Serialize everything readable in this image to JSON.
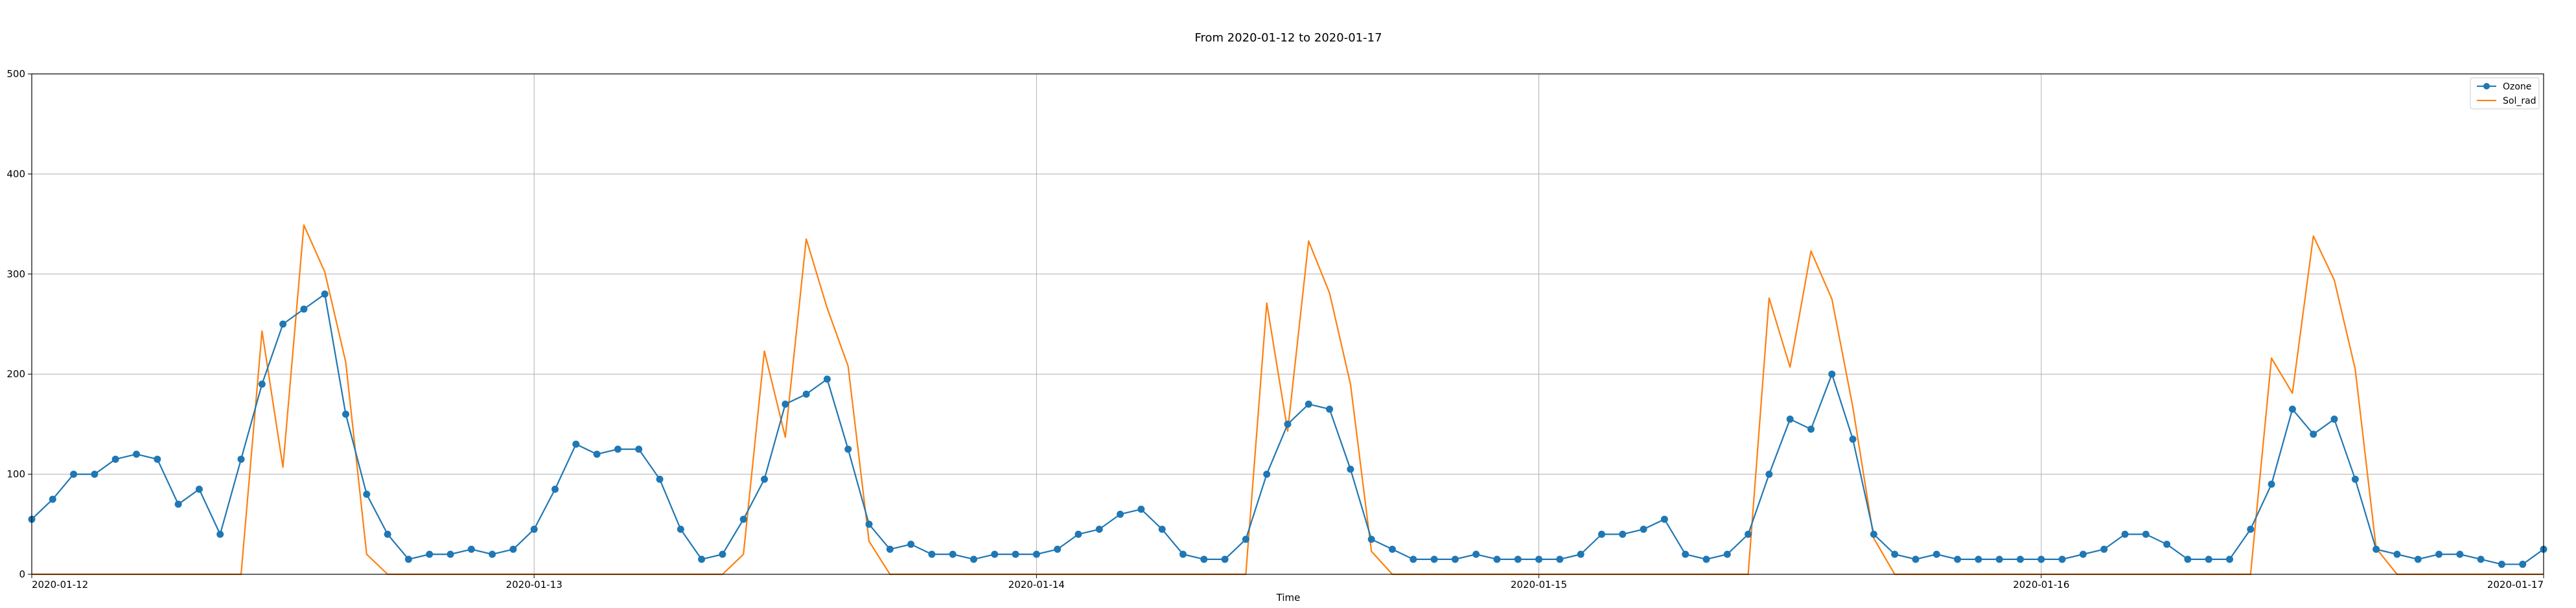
{
  "chart_data": {
    "type": "line",
    "title": "From 2020-01-12 to 2020-01-17",
    "xlabel": "Time",
    "ylabel": "",
    "xlim": [
      "2020-01-12 00:00",
      "2020-01-17 00:00"
    ],
    "ylim": [
      0,
      500
    ],
    "yticks": [
      0,
      100,
      200,
      300,
      400,
      500
    ],
    "xticks": [
      "2020-01-12",
      "2020-01-13",
      "2020-01-14",
      "2020-01-15",
      "2020-01-16",
      "2020-01-17"
    ],
    "grid": true,
    "legend": "top-right",
    "x_interval": "1 hour",
    "x_start": "2020-01-12 00:00",
    "series": [
      {
        "name": "Ozone",
        "color": "#1f77b4",
        "marker": "circle",
        "values": [
          55,
          75,
          100,
          100,
          115,
          120,
          115,
          70,
          85,
          40,
          115,
          190,
          250,
          265,
          280,
          160,
          80,
          40,
          15,
          20,
          20,
          25,
          20,
          25,
          45,
          85,
          130,
          120,
          125,
          125,
          95,
          45,
          15,
          20,
          55,
          95,
          170,
          180,
          195,
          125,
          50,
          25,
          30,
          20,
          20,
          15,
          20,
          20,
          20,
          25,
          40,
          45,
          60,
          65,
          45,
          20,
          15,
          15,
          35,
          100,
          150,
          170,
          165,
          105,
          35,
          25,
          15,
          15,
          15,
          20,
          15,
          15,
          15,
          15,
          20,
          40,
          40,
          45,
          55,
          20,
          15,
          20,
          40,
          100,
          155,
          145,
          200,
          135,
          40,
          20,
          15,
          20,
          15,
          15,
          15,
          15,
          15,
          15,
          20,
          25,
          40,
          40,
          30,
          15,
          15,
          15,
          45,
          90,
          165,
          140,
          155,
          95,
          25,
          20,
          15,
          20,
          20,
          15,
          10,
          10,
          25
        ]
      },
      {
        "name": "Sol_rad",
        "color": "#ff7f0e",
        "marker": "none",
        "values": [
          0,
          0,
          0,
          0,
          0,
          0,
          0,
          0,
          0,
          0,
          0,
          243,
          107,
          349,
          302,
          212,
          20,
          0,
          0,
          0,
          0,
          0,
          0,
          0,
          0,
          0,
          0,
          0,
          0,
          0,
          0,
          0,
          0,
          0,
          20,
          223,
          137,
          335,
          266,
          208,
          33,
          0,
          0,
          0,
          0,
          0,
          0,
          0,
          0,
          0,
          0,
          0,
          0,
          0,
          0,
          0,
          0,
          0,
          0,
          271,
          143,
          333,
          281,
          190,
          23,
          0,
          0,
          0,
          0,
          0,
          0,
          0,
          0,
          0,
          0,
          0,
          0,
          0,
          0,
          0,
          0,
          0,
          0,
          276,
          207,
          323,
          275,
          167,
          36,
          0,
          0,
          0,
          0,
          0,
          0,
          0,
          0,
          0,
          0,
          0,
          0,
          0,
          0,
          0,
          0,
          0,
          0,
          216,
          181,
          338,
          294,
          205,
          26,
          0,
          0,
          0,
          0,
          0,
          0,
          0,
          0
        ]
      }
    ]
  }
}
